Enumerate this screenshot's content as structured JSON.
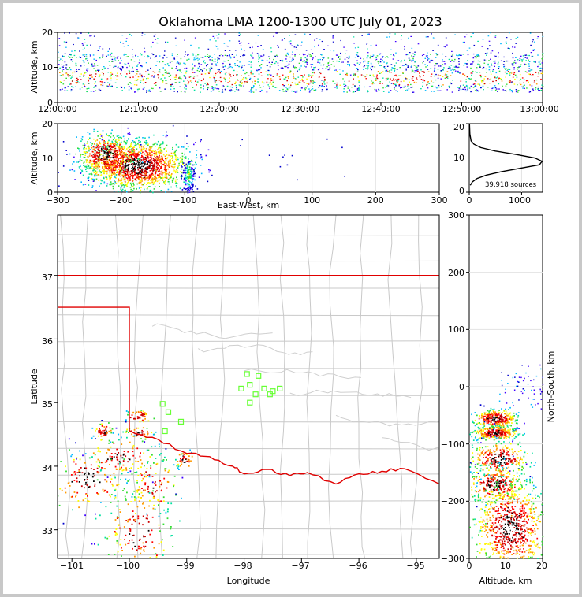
{
  "chart_data": [
    {
      "panel": "time-altitude",
      "type": "heatmap",
      "title": "Oklahoma LMA 1200-1300 UTC July 01, 2023",
      "ylabel": "Altitude, km",
      "xlabel": "",
      "ylim": [
        0,
        20
      ],
      "yticks": [
        "0",
        "10",
        "20"
      ],
      "xticks": [
        "12:00:00",
        "12:10:00",
        "12:20:00",
        "12:30:00",
        "12:40:00",
        "12:50:00",
        "13:00:00"
      ],
      "xlim_minutes": [
        0,
        60
      ],
      "activity_band_km": [
        3,
        14
      ],
      "dense_band_km": [
        5,
        9
      ]
    },
    {
      "panel": "eastwest-altitude",
      "type": "heatmap",
      "xlabel": "East-West, km",
      "ylabel": "Altitude, km",
      "xlim": [
        -300,
        300
      ],
      "ylim": [
        0,
        20
      ],
      "xticks": [
        "−300",
        "−200",
        "−100",
        "0",
        "100",
        "200",
        "300"
      ],
      "yticks": [
        "0",
        "10",
        "20"
      ],
      "clusters": [
        {
          "x_km": -175,
          "alt_km": 8,
          "spread_x": 40,
          "spread_alt": 3.5
        },
        {
          "x_km": -225,
          "alt_km": 11,
          "spread_x": 22,
          "spread_alt": 3
        },
        {
          "x_km": -95,
          "alt_km": 5,
          "spread_x": 5,
          "spread_alt": 2.5
        }
      ]
    },
    {
      "panel": "altitude-histogram",
      "type": "line",
      "xlim": [
        0,
        1400
      ],
      "ylim": [
        0,
        20
      ],
      "xticks": [
        "0",
        "1000"
      ],
      "yticks": [
        "0",
        "10",
        "20"
      ],
      "annotation": "39,918 sources",
      "series": [
        {
          "name": "sources",
          "x": [
            20,
            60,
            150,
            330,
            620,
            980,
            1340,
            1390,
            1250,
            900,
            500,
            220,
            90,
            35,
            12,
            5
          ],
          "y": [
            2,
            3,
            4,
            5,
            6,
            7,
            8,
            9,
            10,
            11,
            12,
            13,
            14,
            15,
            17,
            20
          ]
        }
      ]
    },
    {
      "panel": "plan-view",
      "type": "scatter",
      "xlabel": "Longitude",
      "ylabel": "Latitude",
      "xlim": [
        -101.25,
        -94.6
      ],
      "ylim": [
        32.55,
        37.95
      ],
      "xticks": [
        "−101",
        "−100",
        "−99",
        "−98",
        "−97",
        "−96",
        "−95"
      ],
      "yticks": [
        "33",
        "34",
        "35",
        "36",
        "37"
      ],
      "ok_border": {
        "north_lat": 37.0,
        "panhandle_lat": 36.5,
        "west_lon": -100.0,
        "red_river": [
          [
            -100.0,
            34.56
          ],
          [
            -99.5,
            34.42
          ],
          [
            -99.0,
            34.2
          ],
          [
            -98.6,
            34.15
          ],
          [
            -98.2,
            34.0
          ],
          [
            -98.0,
            33.88
          ],
          [
            -97.6,
            33.95
          ],
          [
            -97.2,
            33.85
          ],
          [
            -96.9,
            33.9
          ],
          [
            -96.4,
            33.72
          ],
          [
            -96.0,
            33.88
          ],
          [
            -95.6,
            33.92
          ],
          [
            -95.2,
            33.96
          ],
          [
            -94.6,
            33.72
          ]
        ]
      },
      "stations": [
        [
          -97.95,
          35.45
        ],
        [
          -97.75,
          35.42
        ],
        [
          -97.9,
          35.28
        ],
        [
          -98.05,
          35.22
        ],
        [
          -97.65,
          35.22
        ],
        [
          -97.5,
          35.18
        ],
        [
          -97.38,
          35.22
        ],
        [
          -97.8,
          35.13
        ],
        [
          -97.55,
          35.13
        ],
        [
          -97.9,
          35.0
        ],
        [
          -99.42,
          34.98
        ],
        [
          -99.32,
          34.85
        ],
        [
          -99.1,
          34.7
        ],
        [
          -99.38,
          34.55
        ]
      ],
      "storms": [
        {
          "lon": -99.85,
          "lat": 34.8,
          "sx": 0.12,
          "sy": 0.06
        },
        {
          "lon": -99.85,
          "lat": 34.53,
          "sx": 0.14,
          "sy": 0.06
        },
        {
          "lon": -100.15,
          "lat": 34.15,
          "sx": 0.28,
          "sy": 0.15
        },
        {
          "lon": -100.45,
          "lat": 34.55,
          "sx": 0.1,
          "sy": 0.07
        },
        {
          "lon": -100.7,
          "lat": 33.8,
          "sx": 0.35,
          "sy": 0.25
        },
        {
          "lon": -99.6,
          "lat": 33.72,
          "sx": 0.2,
          "sy": 0.22
        },
        {
          "lon": -99.85,
          "lat": 33.02,
          "sx": 0.3,
          "sy": 0.35
        },
        {
          "lon": -99.05,
          "lat": 34.1,
          "sx": 0.08,
          "sy": 0.08
        }
      ]
    },
    {
      "panel": "altitude-northsouth",
      "type": "heatmap",
      "xlabel": "Altitude, km",
      "ylabel": "North-South, km",
      "xlim": [
        0,
        20
      ],
      "ylim": [
        -300,
        300
      ],
      "xticks": [
        "0",
        "10",
        "20"
      ],
      "yticks": [
        "−300",
        "−200",
        "−100",
        "0",
        "100",
        "200",
        "300"
      ],
      "clusters": [
        {
          "ns_km": -55,
          "alt_km": 7,
          "spread_ns": 8,
          "spread_alt": 3
        },
        {
          "ns_km": -80,
          "alt_km": 7,
          "spread_ns": 6,
          "spread_alt": 3
        },
        {
          "ns_km": -125,
          "alt_km": 8,
          "spread_ns": 15,
          "spread_alt": 4
        },
        {
          "ns_km": -170,
          "alt_km": 7,
          "spread_ns": 15,
          "spread_alt": 4
        },
        {
          "ns_km": -245,
          "alt_km": 11,
          "spread_ns": 40,
          "spread_alt": 5
        }
      ]
    }
  ]
}
